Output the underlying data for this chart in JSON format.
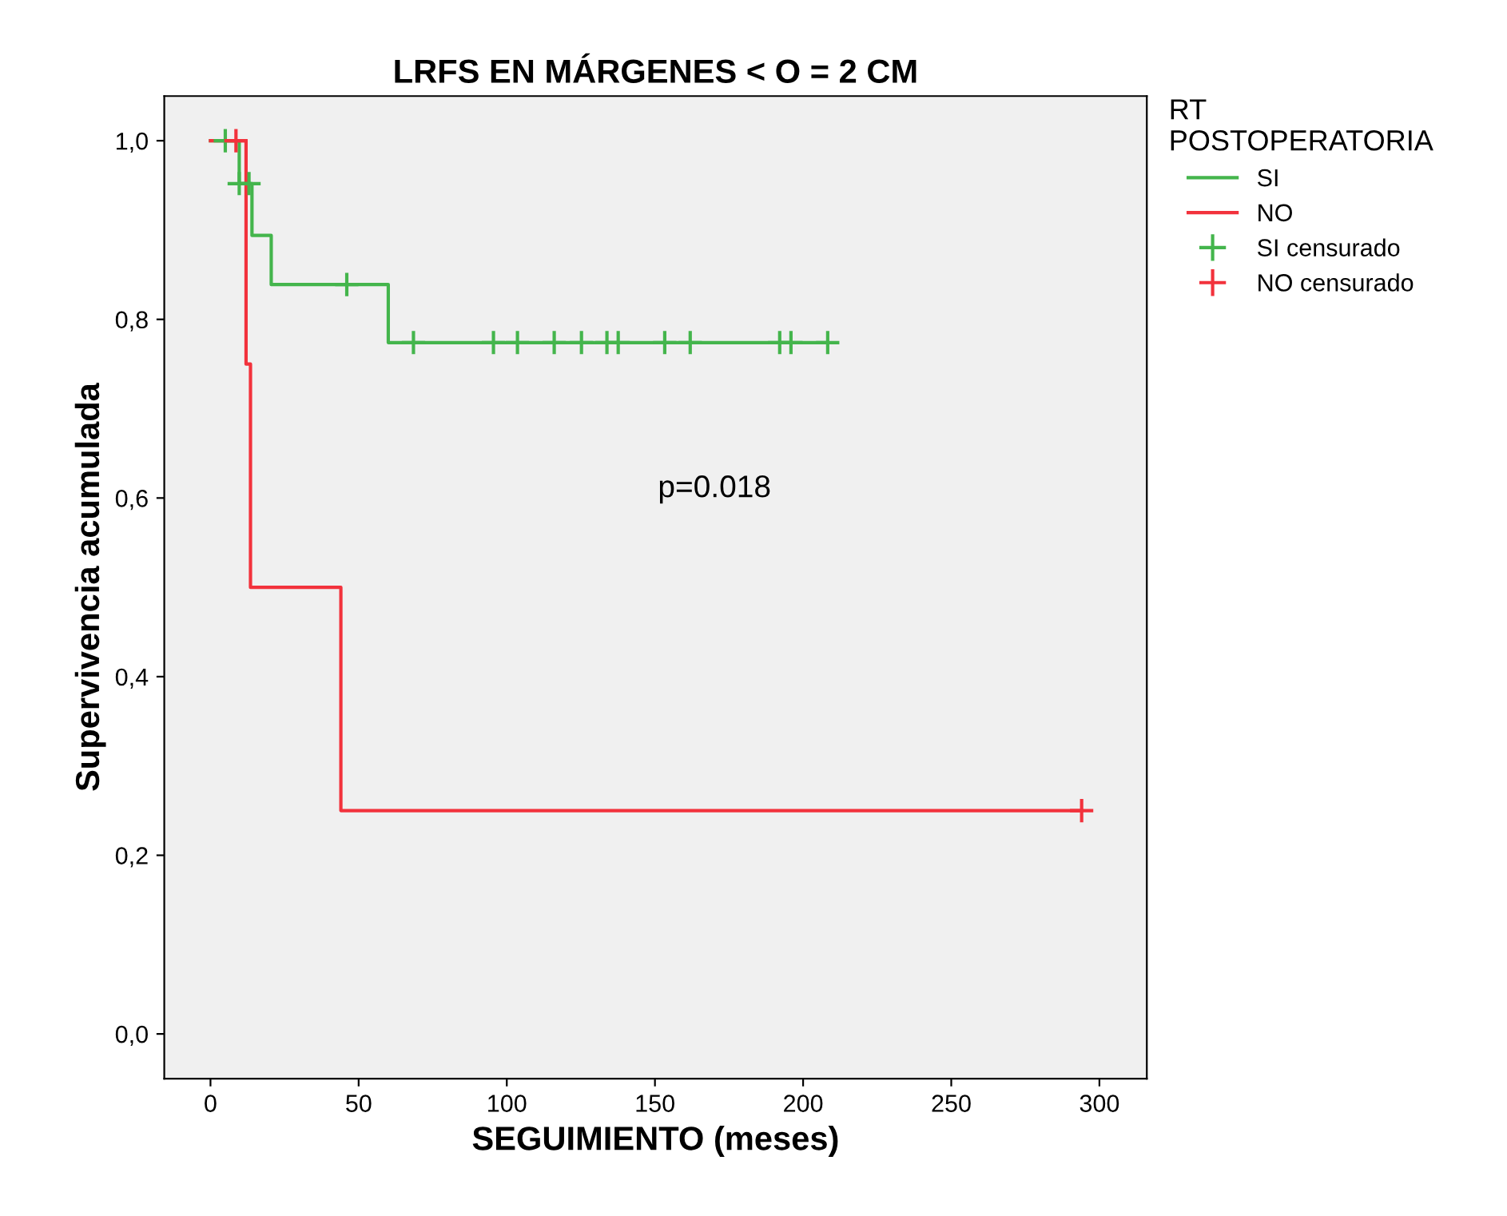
{
  "chart_data": {
    "type": "step",
    "title": "LRFS EN MÁRGENES < O = 2 CM",
    "xlabel": "SEGUIMIENTO (meses)",
    "ylabel": "Supervivencia acumulada",
    "legend_title": "RT\nPOSTOPERATORIA",
    "legend": "top right",
    "xlim": [
      -15.6,
      316
    ],
    "xticks": [
      0,
      50,
      100,
      150,
      200,
      250,
      300
    ],
    "ylim": [
      -0.05,
      1.05
    ],
    "yticks": [
      {
        "value": 0,
        "label": "0,0"
      },
      {
        "value": 0.2,
        "label": "0,2"
      },
      {
        "value": 0.4,
        "label": "0,4"
      },
      {
        "value": 0.6,
        "label": "0,6"
      },
      {
        "value": 0.8,
        "label": "0,8"
      },
      {
        "value": 1,
        "label": "1,0"
      }
    ],
    "grid": false,
    "annotations": [
      "p=0.018"
    ],
    "series": [
      {
        "name": "SI",
        "color": "#44b54c",
        "x": [
          0,
          9.7,
          14,
          20.5,
          60,
          208.3
        ],
        "values": [
          1,
          0.952,
          0.894,
          0.839,
          0.774,
          0.774
        ]
      },
      {
        "name": "NO",
        "color": "#f2323c",
        "x": [
          0,
          12,
          13.5,
          44,
          294
        ],
        "values": [
          1,
          0.75,
          0.5,
          0.25,
          0.25
        ]
      },
      {
        "name": "SI censurado",
        "type": "scatter",
        "marker": "cross",
        "color": "#44b54c",
        "x": [
          5,
          9.7,
          13,
          46,
          68.5,
          95.5,
          103.6,
          116,
          125.2,
          133.8,
          137.6,
          153.3,
          161.9,
          192.1,
          195.9,
          208.3
        ],
        "values": [
          1,
          0.952,
          0.952,
          0.839,
          0.774,
          0.774,
          0.774,
          0.774,
          0.774,
          0.774,
          0.774,
          0.774,
          0.774,
          0.774,
          0.774,
          0.774
        ]
      },
      {
        "name": "NO censurado",
        "type": "scatter",
        "marker": "cross",
        "color": "#f2323c",
        "x": [
          8.6,
          294
        ],
        "values": [
          1,
          0.25
        ]
      }
    ]
  }
}
